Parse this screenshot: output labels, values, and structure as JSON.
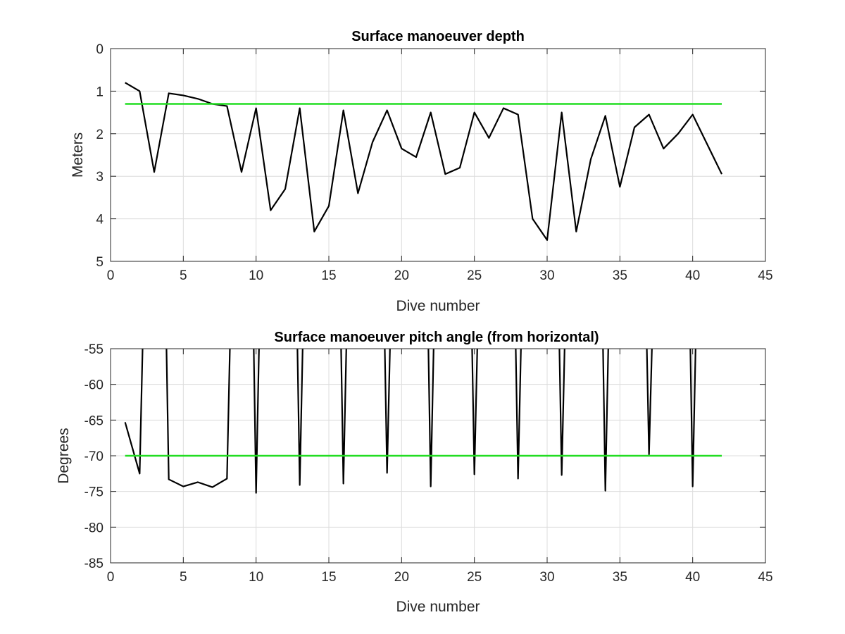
{
  "chart_data": [
    {
      "type": "line",
      "title": "Surface manoeuver depth",
      "xlabel": "Dive number",
      "ylabel": "Meters",
      "xlim": [
        0,
        45
      ],
      "ylim": [
        0,
        5
      ],
      "y_reversed": true,
      "grid": true,
      "xticks": [
        0,
        5,
        10,
        15,
        20,
        25,
        30,
        35,
        40,
        45
      ],
      "yticks": [
        0,
        1,
        2,
        3,
        4,
        5
      ],
      "colors": {
        "data": "#000000",
        "reference": "#22dd22"
      },
      "series": [
        {
          "x": [
            1,
            2,
            3,
            4,
            5,
            6,
            7,
            8,
            9,
            10,
            11,
            12,
            13,
            14,
            15,
            16,
            17,
            18,
            19,
            20,
            21,
            22,
            23,
            24,
            25,
            26,
            27,
            28,
            29,
            30,
            31,
            32,
            33,
            34,
            35,
            36,
            37,
            38,
            39,
            40,
            41,
            42
          ],
          "values": [
            0.8,
            1.0,
            2.9,
            1.05,
            1.1,
            1.18,
            1.3,
            1.35,
            2.9,
            1.4,
            3.8,
            3.3,
            1.4,
            4.3,
            3.7,
            1.45,
            3.4,
            2.2,
            1.45,
            2.35,
            2.55,
            1.5,
            2.95,
            2.8,
            1.5,
            2.1,
            1.4,
            1.55,
            4.0,
            4.5,
            1.5,
            4.3,
            2.6,
            1.58,
            3.25,
            1.85,
            1.55,
            2.35,
            2.0,
            1.55,
            2.25,
            2.95
          ]
        },
        {
          "x": [
            1,
            42
          ],
          "values": [
            1.3,
            1.3
          ]
        }
      ]
    },
    {
      "type": "line",
      "title": "Surface manoeuver pitch angle (from horizontal)",
      "xlabel": "Dive number",
      "ylabel": "Degrees",
      "xlim": [
        0,
        45
      ],
      "ylim": [
        -85,
        -55
      ],
      "grid": true,
      "xticks": [
        0,
        5,
        10,
        15,
        20,
        25,
        30,
        35,
        40,
        45
      ],
      "yticks": [
        -55,
        -60,
        -65,
        -70,
        -75,
        -80,
        -85
      ],
      "colors": {
        "data": "#000000",
        "reference": "#22dd22"
      },
      "series": [
        {
          "x": [
            1,
            2,
            2.2,
            2.4,
            3.8,
            4,
            5,
            6,
            7,
            8,
            8.2,
            9.8,
            10,
            10.2,
            12.8,
            13,
            13.2,
            15.8,
            16,
            16.2,
            18.8,
            19,
            19.2,
            21.8,
            22,
            22.2,
            24.8,
            25,
            25.2,
            27.8,
            28,
            28.2,
            30.8,
            31,
            31.2,
            33.8,
            34,
            34.2,
            36.8,
            37,
            37.2,
            39.8,
            40,
            40.2
          ],
          "values": [
            -65.3,
            -72.5,
            -55,
            -50,
            -50,
            -73.3,
            -74.3,
            -73.7,
            -74.4,
            -73.2,
            -55,
            -50,
            -75.2,
            -55,
            -50,
            -74.1,
            -55,
            -50,
            -73.9,
            -55,
            -50,
            -72.4,
            -55,
            -50,
            -74.3,
            -55,
            -50,
            -72.6,
            -55,
            -50,
            -73.2,
            -55,
            -50,
            -72.7,
            -55,
            -50,
            -74.9,
            -55,
            -50,
            -69.8,
            -55,
            -50,
            -74.3,
            -55
          ]
        },
        {
          "x": [
            1,
            42
          ],
          "values": [
            -70,
            -70
          ]
        }
      ]
    }
  ]
}
